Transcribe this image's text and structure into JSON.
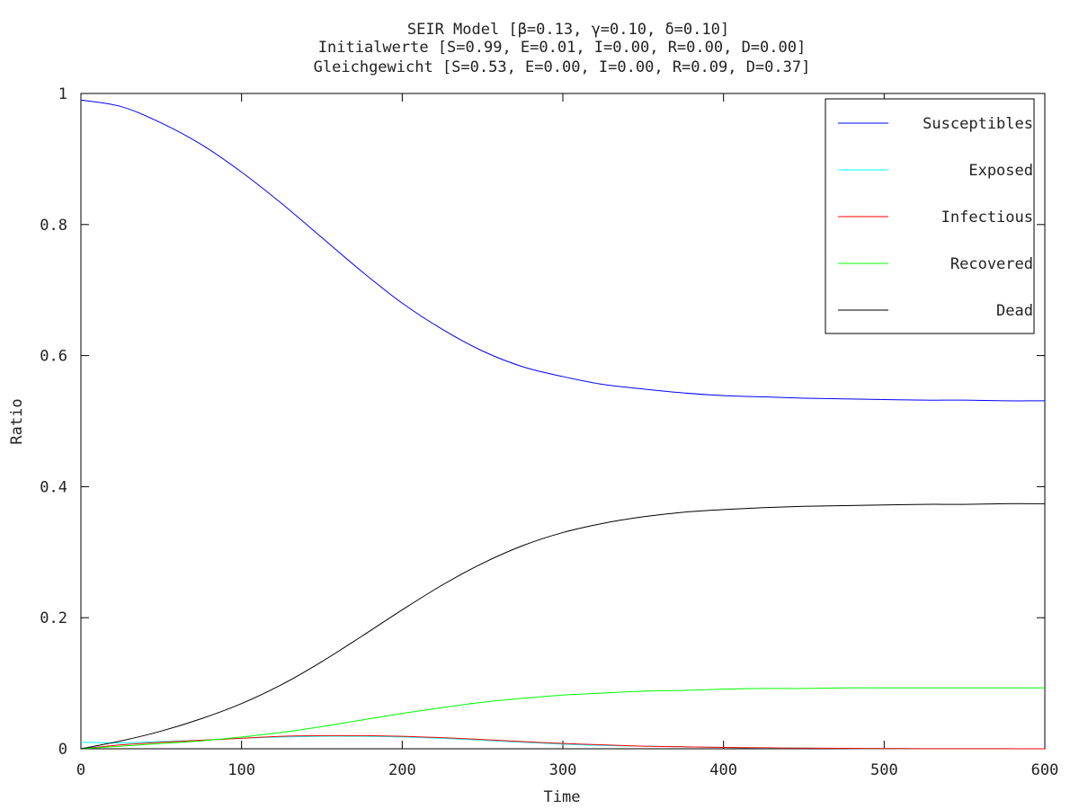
{
  "colors": {
    "susceptibles": "#0000ff",
    "exposed": "#00ffff",
    "infectious": "#ff0000",
    "recovered": "#00ff00",
    "dead": "#000000",
    "axis": "#000000"
  },
  "chart_data": {
    "type": "line",
    "title_lines": [
      "SEIR Model [β=0.13, γ=0.10, δ=0.10]",
      "Initialwerte [S=0.99, E=0.01, I=0.00, R=0.00, D=0.00]",
      "Gleichgewicht [S=0.53, E=0.00, I=0.00, R=0.09, D=0.37]"
    ],
    "xlabel": "Time",
    "ylabel": "Ratio",
    "xlim": [
      0,
      600
    ],
    "ylim": [
      0,
      1
    ],
    "xticks": [
      0,
      100,
      200,
      300,
      400,
      500,
      600
    ],
    "xtick_labels": [
      "0",
      "100",
      "200",
      "300",
      "400",
      "500",
      "600"
    ],
    "yticks": [
      0,
      0.2,
      0.4,
      0.6,
      0.8,
      1
    ],
    "ytick_labels": [
      "0",
      "0.2",
      "0.4",
      "0.6",
      "0.8",
      "1"
    ],
    "grid": false,
    "legend_position": "top-right",
    "x": [
      0,
      25,
      50,
      75,
      100,
      125,
      150,
      175,
      200,
      225,
      250,
      275,
      300,
      325,
      350,
      375,
      400,
      425,
      450,
      475,
      500,
      525,
      550,
      575,
      600
    ],
    "series": [
      {
        "key": "susceptibles",
        "name": "Susceptibles",
        "values": [
          0.99,
          0.98,
          0.955,
          0.922,
          0.88,
          0.832,
          0.78,
          0.728,
          0.68,
          0.64,
          0.607,
          0.583,
          0.568,
          0.556,
          0.549,
          0.543,
          0.539,
          0.537,
          0.535,
          0.534,
          0.533,
          0.532,
          0.532,
          0.531,
          0.531
        ]
      },
      {
        "key": "exposed",
        "name": "Exposed",
        "values": [
          0.01,
          0.009,
          0.011,
          0.013,
          0.016,
          0.018,
          0.019,
          0.019,
          0.018,
          0.016,
          0.013,
          0.01,
          0.007,
          0.005,
          0.004,
          0.003,
          0.002,
          0.001,
          0.001,
          0.0005,
          0.0003,
          0.0002,
          0.0001,
          0.0001,
          0.0
        ]
      },
      {
        "key": "infectious",
        "name": "Infectious",
        "values": [
          0.0,
          0.006,
          0.01,
          0.013,
          0.016,
          0.019,
          0.02,
          0.02,
          0.019,
          0.017,
          0.014,
          0.011,
          0.008,
          0.006,
          0.004,
          0.003,
          0.002,
          0.0015,
          0.001,
          0.0006,
          0.0004,
          0.0002,
          0.0001,
          0.0001,
          0.0
        ]
      },
      {
        "key": "recovered",
        "name": "Recovered",
        "values": [
          0.0,
          0.004,
          0.008,
          0.012,
          0.018,
          0.025,
          0.034,
          0.044,
          0.054,
          0.063,
          0.071,
          0.077,
          0.082,
          0.085,
          0.088,
          0.089,
          0.091,
          0.092,
          0.092,
          0.093,
          0.093,
          0.093,
          0.093,
          0.093,
          0.093
        ]
      },
      {
        "key": "dead",
        "name": "Dead",
        "values": [
          0.0,
          0.012,
          0.027,
          0.046,
          0.069,
          0.098,
          0.133,
          0.172,
          0.212,
          0.25,
          0.283,
          0.31,
          0.33,
          0.344,
          0.354,
          0.361,
          0.365,
          0.368,
          0.37,
          0.371,
          0.372,
          0.373,
          0.373,
          0.374,
          0.374
        ]
      }
    ]
  }
}
